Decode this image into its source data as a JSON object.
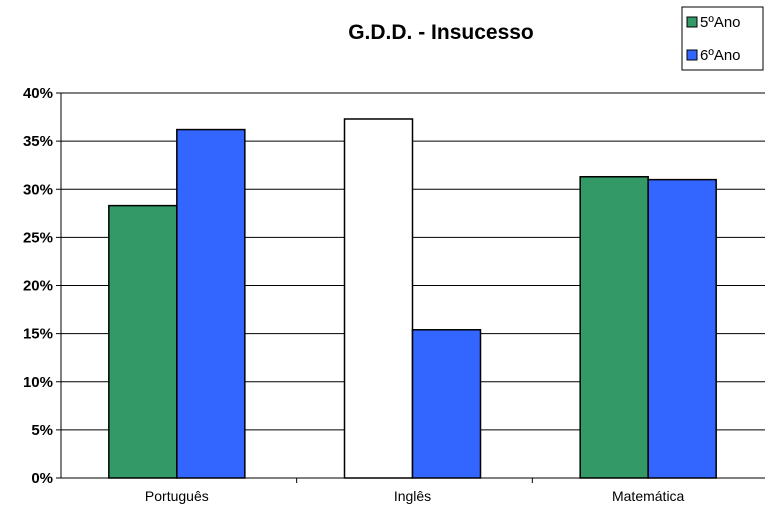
{
  "chart_data": {
    "type": "bar",
    "title": "G.D.D. - Insucesso",
    "categories": [
      "Português",
      "Inglês",
      "Matemática"
    ],
    "series": [
      {
        "name": "5ºAno",
        "values": [
          28.3,
          37.3,
          31.3
        ],
        "color": "#339966"
      },
      {
        "name": "6ºAno",
        "values": [
          36.2,
          15.4,
          31.0
        ],
        "color": "#3366ff"
      }
    ],
    "highlight": {
      "series": 0,
      "category": 1,
      "color": "#ffffff"
    },
    "ylim": [
      0,
      40
    ],
    "yticks": [
      0,
      5,
      10,
      15,
      20,
      25,
      30,
      35,
      40
    ],
    "ytick_labels": [
      "0%",
      "5%",
      "10%",
      "15%",
      "20%",
      "25%",
      "30%",
      "35%",
      "40%"
    ],
    "grid": true,
    "legend_position": "top-right"
  }
}
